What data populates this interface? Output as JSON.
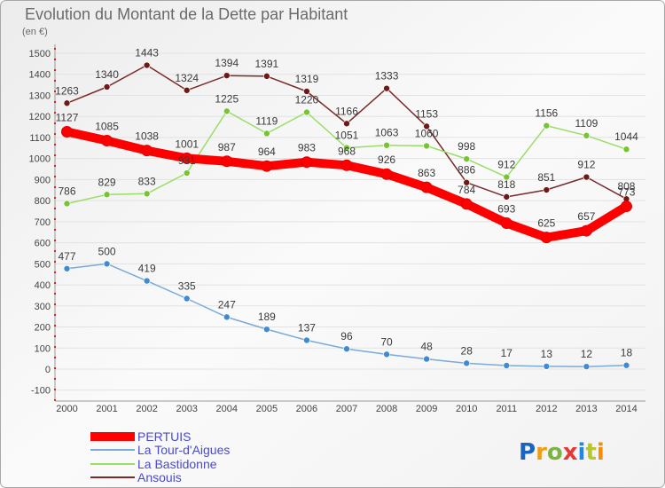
{
  "chart_data": {
    "type": "line",
    "title": "Evolution du Montant de la Dette par Habitant",
    "subtitle": "(en €)",
    "x": [
      2000,
      2001,
      2002,
      2003,
      2004,
      2005,
      2006,
      2007,
      2008,
      2009,
      2010,
      2011,
      2012,
      2013,
      2014
    ],
    "ylim": [
      -100,
      1500
    ],
    "yticks": [
      -100,
      0,
      100,
      200,
      300,
      400,
      500,
      600,
      700,
      800,
      900,
      1000,
      1100,
      1200,
      1300,
      1400,
      1500
    ],
    "grid": true,
    "legend": "bottom-left",
    "series": [
      {
        "name": "PERTUIS",
        "values": [
          1127,
          1085,
          1038,
          1001,
          987,
          964,
          983,
          968,
          926,
          863,
          784,
          693,
          625,
          657,
          773
        ],
        "color": "#ff0000",
        "marker_color": "#ff0000"
      },
      {
        "name": "La Tour-d'Aigues",
        "values": [
          477,
          500,
          419,
          335,
          247,
          189,
          137,
          96,
          70,
          48,
          28,
          17,
          13,
          12,
          18
        ],
        "color": "#7aaad8",
        "marker_color": "#3f8ad0"
      },
      {
        "name": "La Bastidonne",
        "values": [
          786,
          829,
          833,
          931,
          1225,
          1119,
          1220,
          1051,
          1063,
          1060,
          998,
          912,
          1156,
          1109,
          1044
        ],
        "color": "#99dd66",
        "marker_color": "#77c433"
      },
      {
        "name": "Ansouis",
        "values": [
          1263,
          1340,
          1443,
          1324,
          1394,
          1391,
          1319,
          1166,
          1333,
          1153,
          886,
          818,
          851,
          912,
          808
        ],
        "color": "#7b2a2a",
        "marker_color": "#6e1818"
      }
    ]
  },
  "logo": {
    "text": "Proxiti",
    "colors": [
      "#1a64c0",
      "#f39c12",
      "#7cb342",
      "#e53935",
      "#1e88e5",
      "#b8c62a",
      "#fb8c00"
    ]
  }
}
